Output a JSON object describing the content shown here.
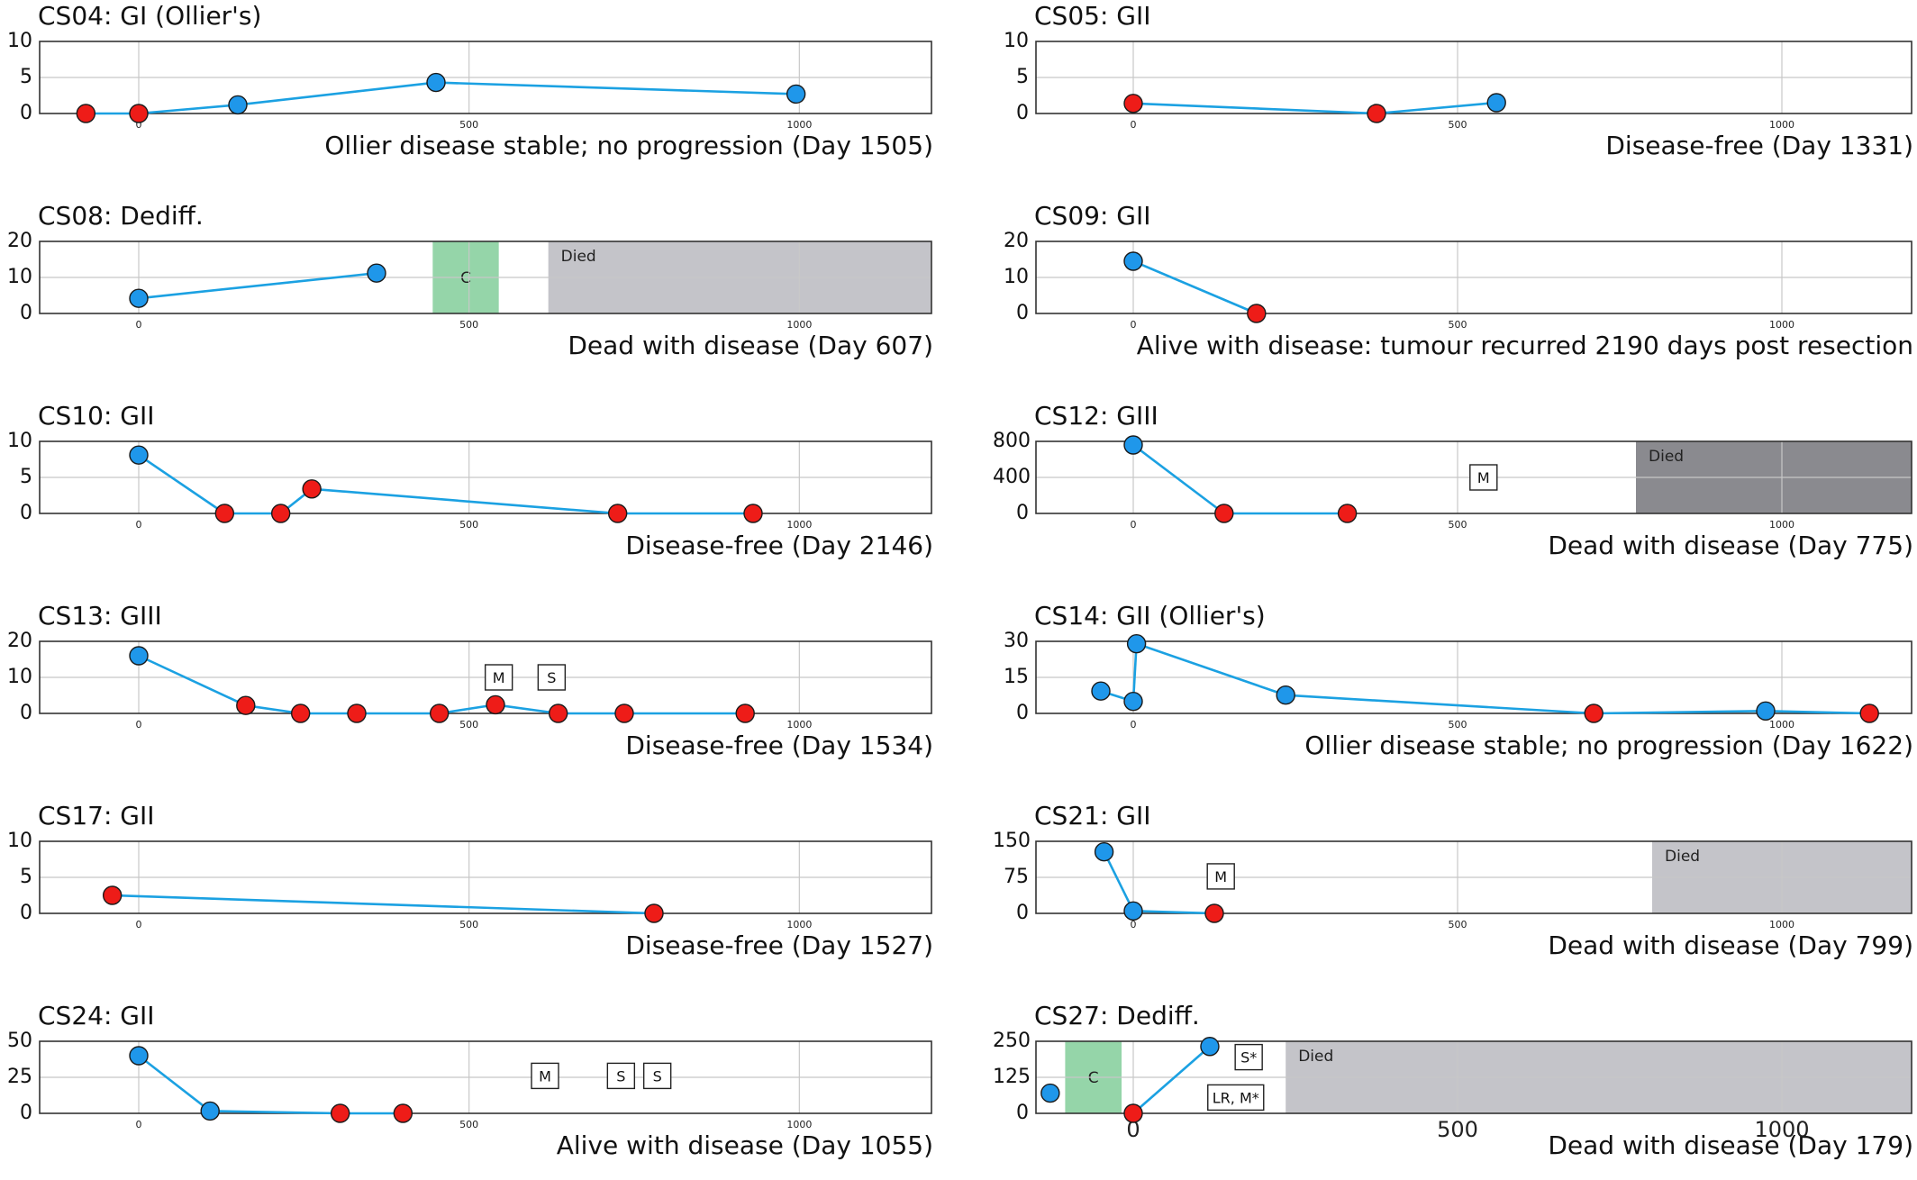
{
  "colors": {
    "line": "#1ba1e2",
    "marker_blue": "#1f97ea",
    "marker_red": "#ee1c18",
    "chemo": "#95d5a9",
    "died_light": "#c4c4c9",
    "died_dark": "#8a8a8f",
    "grid": "#c8c8c8",
    "axis": "#333333"
  },
  "chart_data": [
    {
      "type": "line",
      "title": "CS04: GI (Ollier's)",
      "outcome": "Ollier disease stable; no progression (Day 1505)",
      "xlim": [
        -150,
        1200
      ],
      "ylim": [
        0,
        10
      ],
      "yticks": [
        "0",
        "5",
        "10"
      ],
      "xticks": [
        "0",
        "500",
        "1000"
      ],
      "points": [
        {
          "x": -80,
          "y": 0,
          "c": "red"
        },
        {
          "x": 0,
          "y": 0,
          "c": "red"
        },
        {
          "x": 150,
          "y": 1.2,
          "c": "blue"
        },
        {
          "x": 450,
          "y": 4.3,
          "c": "blue"
        },
        {
          "x": 995,
          "y": 2.7,
          "c": "blue"
        }
      ],
      "segments": [
        [
          -80,
          0,
          0,
          0
        ],
        [
          0,
          0,
          150,
          1.2
        ],
        [
          150,
          1.2,
          450,
          4.3
        ],
        [
          450,
          4.3,
          995,
          2.7
        ]
      ],
      "regions": [],
      "boxes": []
    },
    {
      "type": "line",
      "title": "CS05: GII",
      "outcome": "Disease-free (Day 1331)",
      "xlim": [
        -150,
        1200
      ],
      "ylim": [
        0,
        10
      ],
      "yticks": [
        "0",
        "5",
        "10"
      ],
      "xticks": [
        "0",
        "500",
        "1000"
      ],
      "points": [
        {
          "x": 0,
          "y": 1.4,
          "c": "red"
        },
        {
          "x": 375,
          "y": 0,
          "c": "red"
        },
        {
          "x": 560,
          "y": 1.5,
          "c": "blue"
        }
      ],
      "segments": [
        [
          0,
          1.4,
          375,
          0
        ],
        [
          375,
          0,
          560,
          1.5
        ]
      ],
      "regions": [],
      "boxes": []
    },
    {
      "type": "line",
      "title": "CS08: Dediff.",
      "outcome": "Dead with disease (Day 607)",
      "xlim": [
        -150,
        1200
      ],
      "ylim": [
        0,
        20
      ],
      "yticks": [
        "0",
        "10",
        "20"
      ],
      "xticks": [
        "0",
        "500",
        "1000"
      ],
      "points": [
        {
          "x": 0,
          "y": 4.2,
          "c": "blue"
        },
        {
          "x": 360,
          "y": 11.2,
          "c": "blue"
        }
      ],
      "segments": [
        [
          0,
          4.2,
          360,
          11.2
        ]
      ],
      "regions": [
        {
          "x0": 445,
          "x1": 545,
          "kind": "chemo",
          "label": "C"
        },
        {
          "x0": 620,
          "x1": 1200,
          "kind": "died_light",
          "label": "Died"
        }
      ],
      "boxes": []
    },
    {
      "type": "line",
      "title": "CS09: GII",
      "outcome": "Alive with disease: tumour recurred 2190 days post resection",
      "xlim": [
        -150,
        1200
      ],
      "ylim": [
        0,
        20
      ],
      "yticks": [
        "0",
        "10",
        "20"
      ],
      "xticks": [
        "0",
        "500",
        "1000"
      ],
      "points": [
        {
          "x": 0,
          "y": 14.5,
          "c": "blue"
        },
        {
          "x": 190,
          "y": 0,
          "c": "red"
        }
      ],
      "segments": [
        [
          0,
          14.5,
          190,
          0
        ]
      ],
      "regions": [],
      "boxes": []
    },
    {
      "type": "line",
      "title": "CS10: GII",
      "outcome": "Disease-free (Day 2146)",
      "xlim": [
        -150,
        1200
      ],
      "ylim": [
        0,
        10
      ],
      "yticks": [
        "0",
        "5",
        "10"
      ],
      "xticks": [
        "0",
        "500",
        "1000"
      ],
      "points": [
        {
          "x": 0,
          "y": 8.1,
          "c": "blue"
        },
        {
          "x": 130,
          "y": 0,
          "c": "red"
        },
        {
          "x": 215,
          "y": 0,
          "c": "red"
        },
        {
          "x": 262,
          "y": 3.4,
          "c": "red"
        },
        {
          "x": 725,
          "y": 0,
          "c": "red"
        },
        {
          "x": 930,
          "y": 0,
          "c": "red"
        }
      ],
      "segments": [
        [
          0,
          8.1,
          130,
          0
        ],
        [
          130,
          0,
          215,
          0
        ],
        [
          215,
          0,
          262,
          3.4
        ],
        [
          262,
          3.4,
          725,
          0
        ],
        [
          725,
          0,
          930,
          0
        ]
      ],
      "regions": [],
      "boxes": []
    },
    {
      "type": "line",
      "title": "CS12: GIII",
      "outcome": "Dead with disease (Day 775)",
      "xlim": [
        -150,
        1200
      ],
      "ylim": [
        0,
        800
      ],
      "yticks": [
        "0",
        "400",
        "800"
      ],
      "xticks": [
        "0",
        "500",
        "1000"
      ],
      "points": [
        {
          "x": 0,
          "y": 760,
          "c": "blue"
        },
        {
          "x": 140,
          "y": 0,
          "c": "red"
        },
        {
          "x": 330,
          "y": 0,
          "c": "red"
        }
      ],
      "segments": [
        [
          0,
          760,
          140,
          0
        ],
        [
          140,
          0,
          330,
          0
        ]
      ],
      "regions": [
        {
          "x0": 775,
          "x1": 1200,
          "kind": "died_dark",
          "label": "Died"
        }
      ],
      "boxes": [
        {
          "x": 540,
          "y": 400,
          "label": "M"
        }
      ]
    },
    {
      "type": "line",
      "title": "CS13: GIII",
      "outcome": "Disease-free (Day 1534)",
      "xlim": [
        -150,
        1200
      ],
      "ylim": [
        0,
        20
      ],
      "yticks": [
        "0",
        "10",
        "20"
      ],
      "xticks": [
        "0",
        "500",
        "1000"
      ],
      "points": [
        {
          "x": 0,
          "y": 16,
          "c": "blue"
        },
        {
          "x": 162,
          "y": 2.2,
          "c": "red"
        },
        {
          "x": 245,
          "y": 0,
          "c": "red"
        },
        {
          "x": 330,
          "y": 0,
          "c": "red"
        },
        {
          "x": 455,
          "y": 0,
          "c": "red"
        },
        {
          "x": 540,
          "y": 2.4,
          "c": "red"
        },
        {
          "x": 635,
          "y": 0,
          "c": "red"
        },
        {
          "x": 735,
          "y": 0,
          "c": "red"
        },
        {
          "x": 918,
          "y": 0,
          "c": "red"
        }
      ],
      "segments": [
        [
          0,
          16,
          162,
          2.2
        ],
        [
          162,
          2.2,
          245,
          0
        ],
        [
          245,
          0,
          330,
          0
        ],
        [
          330,
          0,
          455,
          0
        ],
        [
          455,
          0,
          540,
          2.4
        ],
        [
          540,
          2.4,
          635,
          0
        ],
        [
          635,
          0,
          735,
          0
        ],
        [
          735,
          0,
          918,
          0
        ]
      ],
      "regions": [],
      "boxes": [
        {
          "x": 545,
          "y": 10,
          "label": "M"
        },
        {
          "x": 625,
          "y": 10,
          "label": "S"
        }
      ]
    },
    {
      "type": "line",
      "title": "CS14: GII (Ollier's)",
      "outcome": "Ollier disease stable; no progression (Day 1622)",
      "xlim": [
        -150,
        1200
      ],
      "ylim": [
        0,
        30
      ],
      "yticks": [
        "0",
        "15",
        "30"
      ],
      "xticks": [
        "0",
        "500",
        "1000"
      ],
      "points": [
        {
          "x": -50,
          "y": 9.3,
          "c": "blue"
        },
        {
          "x": 0,
          "y": 5,
          "c": "blue"
        },
        {
          "x": 5,
          "y": 29,
          "c": "blue"
        },
        {
          "x": 235,
          "y": 7.6,
          "c": "blue"
        },
        {
          "x": 710,
          "y": 0,
          "c": "red"
        },
        {
          "x": 975,
          "y": 1,
          "c": "blue"
        },
        {
          "x": 1135,
          "y": 0,
          "c": "red"
        }
      ],
      "segments": [
        [
          -50,
          9.3,
          0,
          5
        ],
        [
          0,
          5,
          5,
          29
        ],
        [
          5,
          29,
          235,
          7.6
        ],
        [
          235,
          7.6,
          710,
          0
        ],
        [
          710,
          0,
          975,
          1
        ],
        [
          975,
          1,
          1135,
          0
        ]
      ],
      "regions": [],
      "boxes": []
    },
    {
      "type": "line",
      "title": "CS17: GII",
      "outcome": "Disease-free (Day 1527)",
      "xlim": [
        -150,
        1200
      ],
      "ylim": [
        0,
        10
      ],
      "yticks": [
        "0",
        "5",
        "10"
      ],
      "xticks": [
        "0",
        "500",
        "1000"
      ],
      "points": [
        {
          "x": -40,
          "y": 2.5,
          "c": "red"
        },
        {
          "x": 780,
          "y": 0,
          "c": "red"
        }
      ],
      "segments": [
        [
          -40,
          2.5,
          780,
          0
        ]
      ],
      "regions": [],
      "boxes": []
    },
    {
      "type": "line",
      "title": "CS21: GII",
      "outcome": "Dead with disease (Day 799)",
      "xlim": [
        -150,
        1200
      ],
      "ylim": [
        0,
        150
      ],
      "yticks": [
        "0",
        "75",
        "150"
      ],
      "xticks": [
        "0",
        "500",
        "1000"
      ],
      "points": [
        {
          "x": -45,
          "y": 128,
          "c": "blue"
        },
        {
          "x": 0,
          "y": 5,
          "c": "blue"
        },
        {
          "x": 125,
          "y": 0,
          "c": "red"
        }
      ],
      "segments": [
        [
          -45,
          128,
          0,
          5
        ],
        [
          0,
          5,
          125,
          0
        ]
      ],
      "regions": [
        {
          "x0": 800,
          "x1": 1200,
          "kind": "died_light",
          "label": "Died"
        }
      ],
      "boxes": [
        {
          "x": 135,
          "y": 77,
          "label": "M"
        }
      ]
    },
    {
      "type": "line",
      "title": "CS24: GII",
      "outcome": "Alive with disease (Day 1055)",
      "xlim": [
        -150,
        1200
      ],
      "ylim": [
        0,
        50
      ],
      "yticks": [
        "0",
        "25",
        "50"
      ],
      "xticks": [
        "0",
        "500",
        "1000"
      ],
      "points": [
        {
          "x": 0,
          "y": 40,
          "c": "blue"
        },
        {
          "x": 108,
          "y": 1.6,
          "c": "blue"
        },
        {
          "x": 305,
          "y": 0,
          "c": "red"
        },
        {
          "x": 400,
          "y": 0,
          "c": "red"
        }
      ],
      "segments": [
        [
          0,
          40,
          108,
          1.6
        ],
        [
          108,
          1.6,
          305,
          0
        ],
        [
          305,
          0,
          400,
          0
        ]
      ],
      "regions": [],
      "boxes": [
        {
          "x": 615,
          "y": 26,
          "label": "M"
        },
        {
          "x": 730,
          "y": 26,
          "label": "S"
        },
        {
          "x": 785,
          "y": 26,
          "label": "S"
        }
      ]
    },
    {
      "type": "line",
      "title": "CS27: Dediff.",
      "outcome": "Dead with disease (Day 179)",
      "xlim": [
        -150,
        1200
      ],
      "ylim": [
        0,
        250
      ],
      "yticks": [
        "0",
        "125",
        "250"
      ],
      "xticks": [
        "0",
        "500",
        "1000"
      ],
      "points": [
        {
          "x": -128,
          "y": 70,
          "c": "blue"
        },
        {
          "x": 0,
          "y": 0,
          "c": "red"
        },
        {
          "x": 118,
          "y": 232,
          "c": "blue"
        }
      ],
      "segments": [
        [
          0,
          0,
          118,
          232
        ]
      ],
      "regions": [
        {
          "x0": -105,
          "x1": -18,
          "kind": "chemo",
          "label": "C"
        },
        {
          "x0": 235,
          "x1": 1200,
          "kind": "died_light",
          "label": "Died"
        }
      ],
      "boxes": [
        {
          "x": 178,
          "y": 195,
          "label": "S*"
        },
        {
          "x": 158,
          "y": 55,
          "label": "LR, M*"
        }
      ]
    }
  ]
}
